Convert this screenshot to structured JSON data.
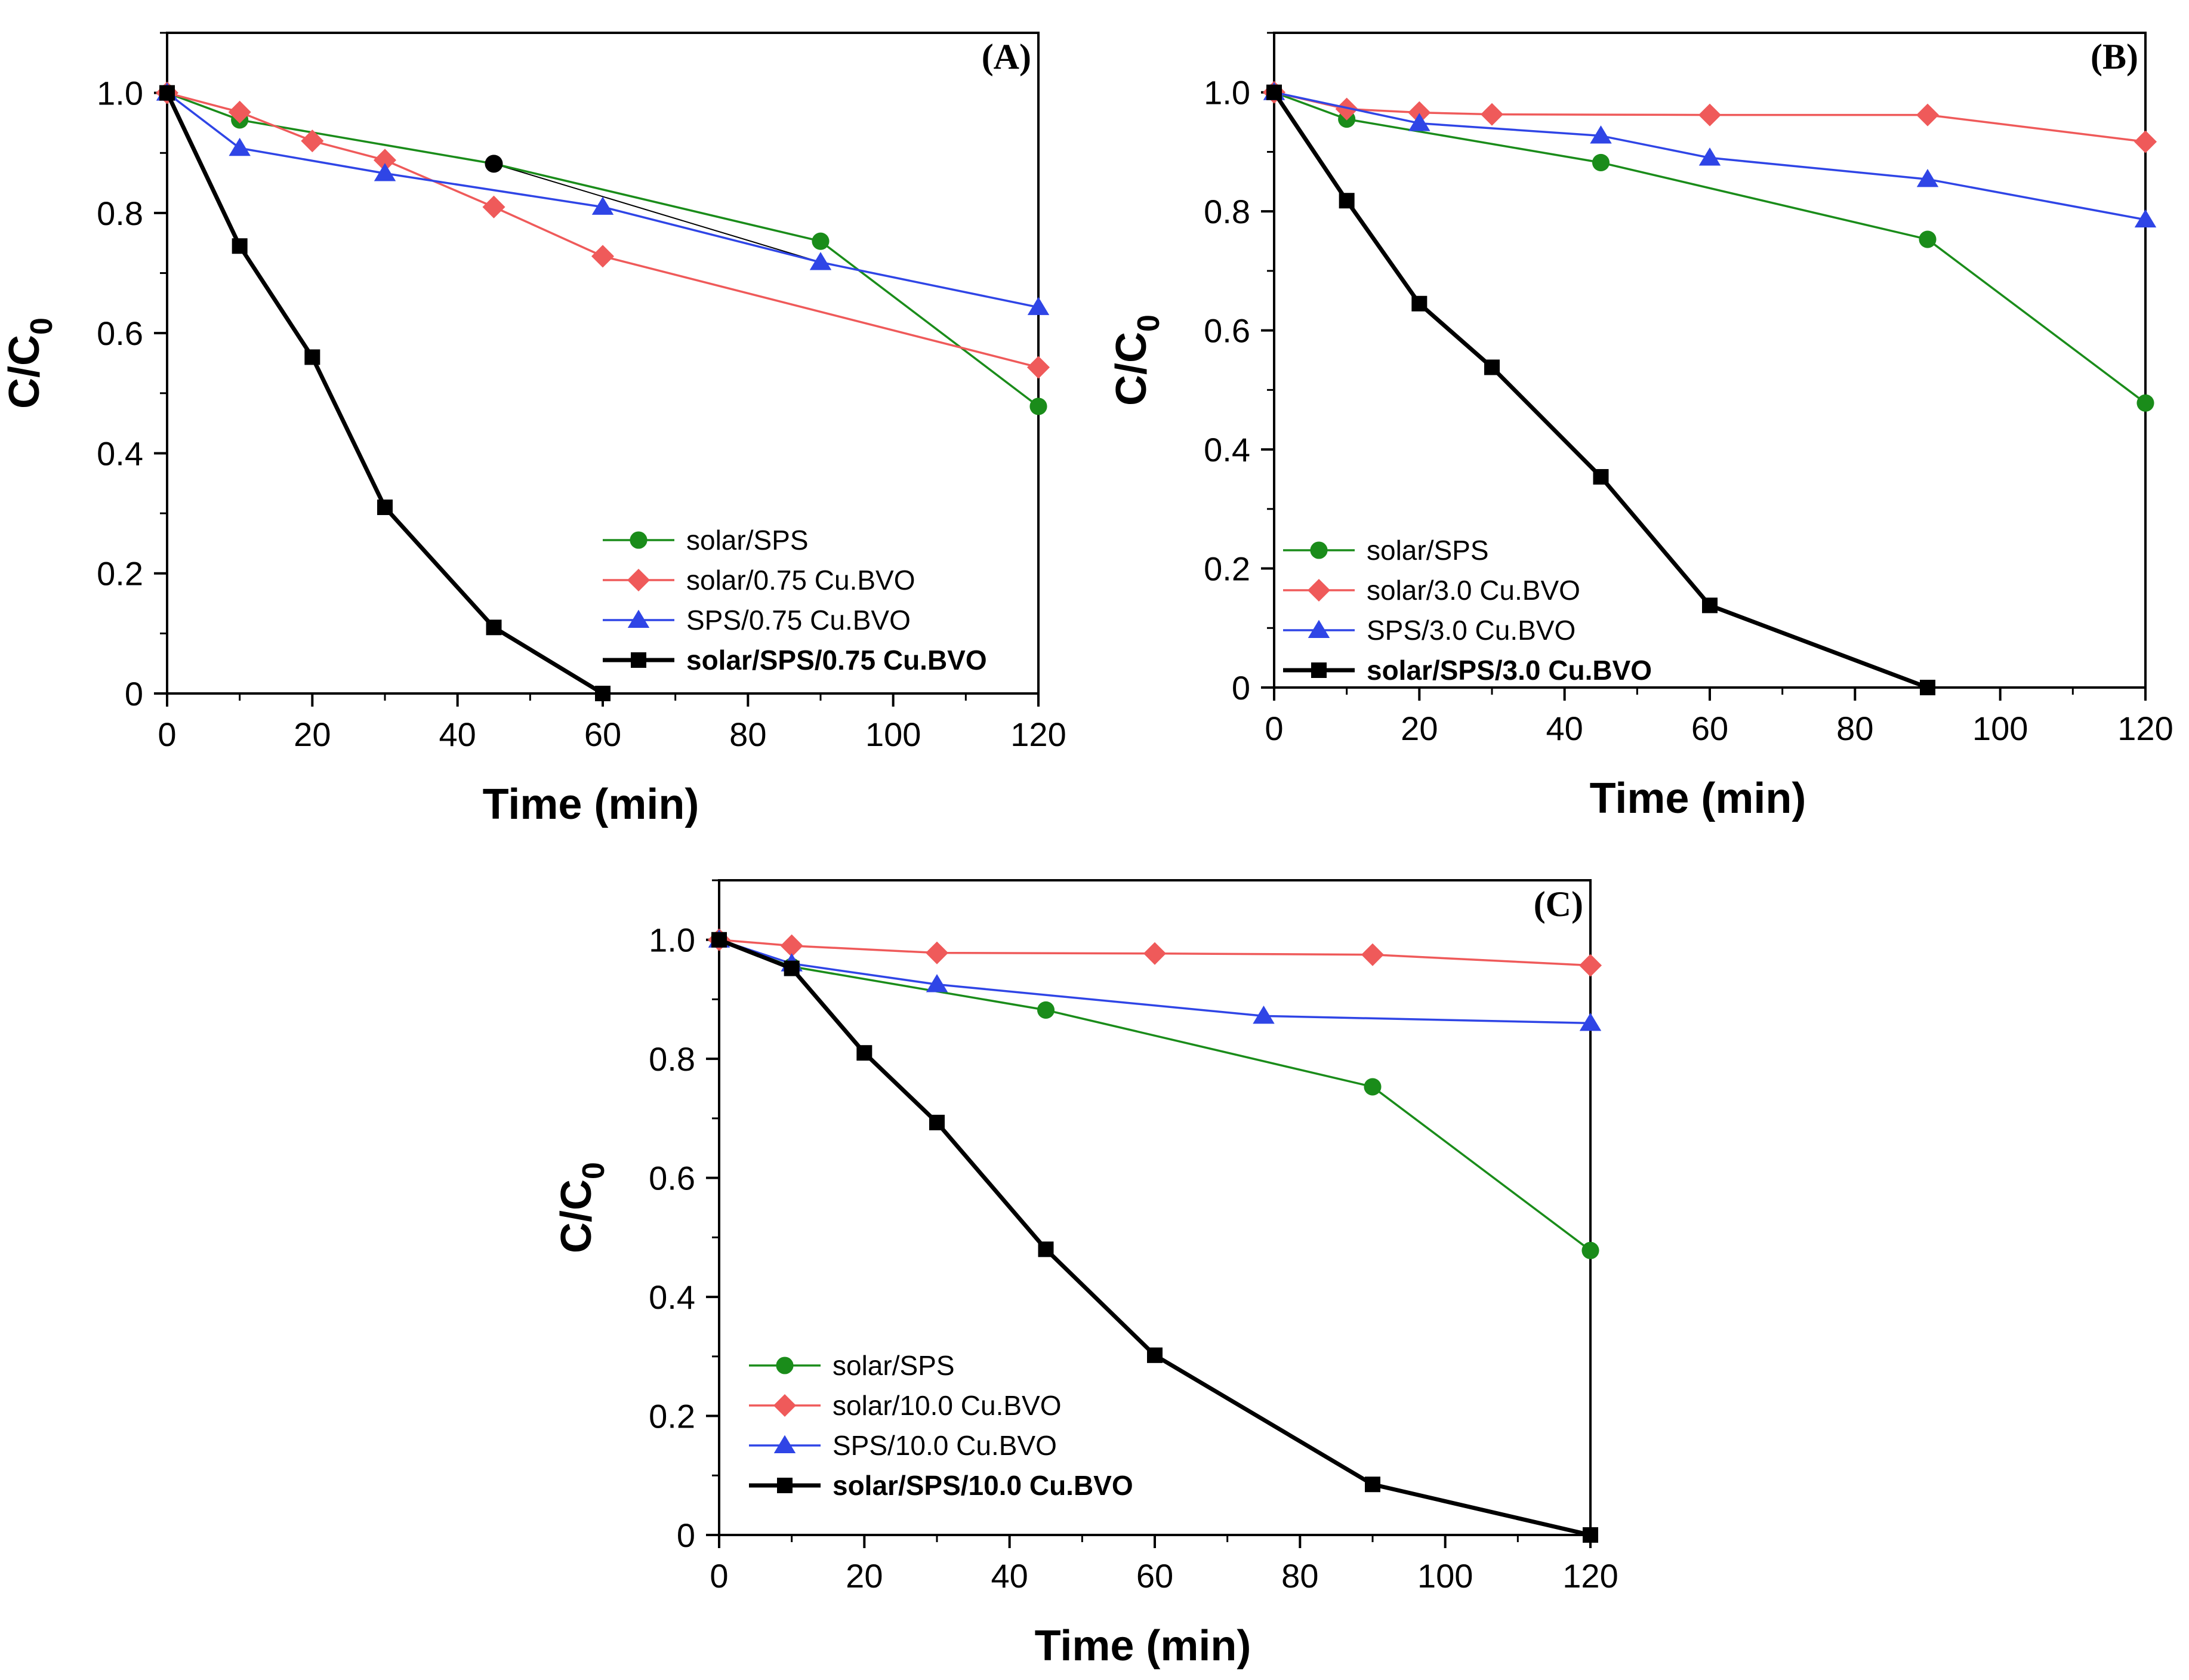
{
  "chart_data": [
    {
      "type": "line",
      "panel_label": "(A)",
      "xlabel": "Time (min)",
      "ylabel_main": "C/C",
      "ylabel_sub": "0",
      "xlim": [
        0,
        120
      ],
      "ylim": [
        0,
        1.1
      ],
      "xticks": [
        "0",
        "20",
        "40",
        "60",
        "80",
        "100",
        "120"
      ],
      "yticks": [
        "0",
        "0.2",
        "0.4",
        "0.6",
        "0.8",
        "1.0"
      ],
      "legend_position": "bottom-right",
      "series": [
        {
          "name": "solar/SPS",
          "color": "#1a8c1a",
          "marker": "circle",
          "bold": false,
          "x": [
            0,
            10,
            45,
            90,
            120
          ],
          "y": [
            1.0,
            0.955,
            0.882,
            0.753,
            0.478
          ]
        },
        {
          "name": "solar/0.75 Cu.BVO",
          "color": "#ef5a5a",
          "marker": "diamond",
          "bold": false,
          "x": [
            0,
            10,
            20,
            30,
            45,
            60,
            120
          ],
          "y": [
            1.0,
            0.968,
            0.92,
            0.888,
            0.81,
            0.728,
            0.543
          ]
        },
        {
          "name": "SPS/0.75 Cu.BVO",
          "color": "#2f45e6",
          "marker": "triangle",
          "bold": false,
          "x": [
            0,
            10,
            30,
            60,
            90,
            120
          ],
          "y": [
            1.0,
            0.908,
            0.866,
            0.81,
            0.718,
            0.643
          ]
        },
        {
          "name": "solar/SPS/0.75 Cu.BVO",
          "color": "#000000",
          "marker": "square",
          "bold": true,
          "x": [
            0,
            10,
            20,
            30,
            45,
            60
          ],
          "y": [
            1.0,
            0.745,
            0.56,
            0.31,
            0.11,
            0.0
          ]
        }
      ],
      "annotations": [
        {
          "type": "marker",
          "color": "#000000",
          "x": 45,
          "y": 0.882
        },
        {
          "type": "line",
          "color": "#000000",
          "x1": 45,
          "y1": 0.882,
          "x2": 90,
          "y2": 0.753
        },
        {
          "type": "line",
          "color": "#000000",
          "x1": 45,
          "y1": 0.882,
          "x2": 90,
          "y2": 0.718
        }
      ]
    },
    {
      "type": "line",
      "panel_label": "(B)",
      "xlabel": "Time (min)",
      "ylabel_main": "C/C",
      "ylabel_sub": "0",
      "xlim": [
        0,
        120
      ],
      "ylim": [
        0,
        1.1
      ],
      "xticks": [
        "0",
        "20",
        "40",
        "60",
        "80",
        "100",
        "120"
      ],
      "yticks": [
        "0",
        "0.2",
        "0.4",
        "0.6",
        "0.8",
        "1.0"
      ],
      "legend_position": "bottom-left",
      "series": [
        {
          "name": "solar/SPS",
          "color": "#1a8c1a",
          "marker": "circle",
          "bold": false,
          "x": [
            0,
            10,
            45,
            90,
            120
          ],
          "y": [
            1.0,
            0.955,
            0.882,
            0.753,
            0.478
          ]
        },
        {
          "name": "solar/3.0 Cu.BVO",
          "color": "#ef5a5a",
          "marker": "diamond",
          "bold": false,
          "x": [
            0,
            10,
            20,
            30,
            60,
            90,
            120
          ],
          "y": [
            1.0,
            0.972,
            0.966,
            0.963,
            0.962,
            0.962,
            0.917
          ]
        },
        {
          "name": "SPS/3.0 Cu.BVO",
          "color": "#2f45e6",
          "marker": "triangle",
          "bold": false,
          "x": [
            0,
            20,
            45,
            60,
            90,
            120
          ],
          "y": [
            1.0,
            0.948,
            0.927,
            0.89,
            0.854,
            0.786
          ]
        },
        {
          "name": "solar/SPS/3.0 Cu.BVO",
          "color": "#000000",
          "marker": "square",
          "bold": true,
          "x": [
            0,
            10,
            20,
            30,
            45,
            60,
            90
          ],
          "y": [
            1.0,
            0.818,
            0.645,
            0.538,
            0.354,
            0.138,
            0.0
          ]
        }
      ],
      "annotations": []
    },
    {
      "type": "line",
      "panel_label": "(C)",
      "xlabel": "Time (min)",
      "ylabel_main": "C/C",
      "ylabel_sub": "0",
      "xlim": [
        0,
        120
      ],
      "ylim": [
        0,
        1.1
      ],
      "xticks": [
        "0",
        "20",
        "40",
        "60",
        "80",
        "100",
        "120"
      ],
      "yticks": [
        "0",
        "0.2",
        "0.4",
        "0.6",
        "0.8",
        "1.0"
      ],
      "legend_position": "bottom-left",
      "series": [
        {
          "name": "solar/SPS",
          "color": "#1a8c1a",
          "marker": "circle",
          "bold": false,
          "x": [
            0,
            10,
            45,
            90,
            120
          ],
          "y": [
            1.0,
            0.955,
            0.882,
            0.753,
            0.478
          ]
        },
        {
          "name": "solar/10.0 Cu.BVO",
          "color": "#ef5a5a",
          "marker": "diamond",
          "bold": false,
          "x": [
            0,
            10,
            30,
            60,
            90,
            120
          ],
          "y": [
            1.0,
            0.99,
            0.978,
            0.977,
            0.975,
            0.957
          ]
        },
        {
          "name": "SPS/10.0 Cu.BVO",
          "color": "#2f45e6",
          "marker": "triangle",
          "bold": false,
          "x": [
            0,
            10,
            30,
            75,
            120
          ],
          "y": [
            1.0,
            0.96,
            0.925,
            0.872,
            0.86
          ]
        },
        {
          "name": "solar/SPS/10.0 Cu.BVO",
          "color": "#000000",
          "marker": "square",
          "bold": true,
          "x": [
            0,
            10,
            20,
            30,
            45,
            60,
            90,
            120
          ],
          "y": [
            1.0,
            0.952,
            0.81,
            0.693,
            0.48,
            0.302,
            0.085,
            0.0
          ]
        }
      ],
      "annotations": []
    }
  ]
}
